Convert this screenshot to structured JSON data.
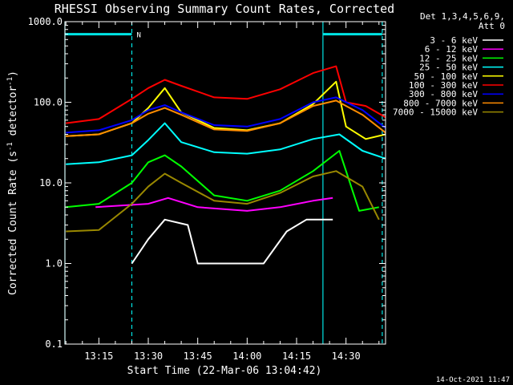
{
  "chart_data": {
    "type": "line",
    "title": "RHESSI Observing Summary Count Rates, Corrected",
    "xlabel": "Start Time (22-Mar-06 13:04:42)",
    "ylabel": "Corrected Count Rate (s⁻¹ detector⁻¹)",
    "ylabel_parts": [
      "Corrected Count Rate (s",
      "-1",
      " detector",
      "-1",
      ")"
    ],
    "y_scale": "log",
    "ylim": [
      0.1,
      1000
    ],
    "xlim": [
      "13:04:42",
      "14:42:00"
    ],
    "y_ticks": [
      "0.1",
      "1.0",
      "10.0",
      "100.0",
      "1000.0"
    ],
    "x_ticks": [
      "13:15",
      "13:30",
      "13:45",
      "14:00",
      "14:15",
      "14:30"
    ],
    "legend_header": [
      "Det 1,3,4,5,6,9,",
      "Att 0"
    ],
    "legend_position": "right",
    "footer": "14-Oct-2021 11:47",
    "night_marker": "N",
    "vertical_markers": [
      {
        "time": "13:04:42",
        "style": "solid",
        "color": "#00e5e5"
      },
      {
        "time": "13:25:00",
        "style": "dashed",
        "color": "#00e5e5"
      },
      {
        "time": "14:23:00",
        "style": "solid",
        "color": "#00e5e5"
      },
      {
        "time": "14:41:00",
        "style": "dashed",
        "color": "#00e5e5"
      }
    ],
    "night_bars": [
      {
        "start": "13:04:42",
        "end": "13:25:00",
        "value": 700
      },
      {
        "start": "14:23:00",
        "end": "14:41:00",
        "value": 700
      }
    ],
    "series": [
      {
        "name": "3 - 6 keV",
        "color": "#ffffff",
        "points": [
          [
            "13:25",
            1.0
          ],
          [
            "13:30",
            2.0
          ],
          [
            "13:35",
            3.5
          ],
          [
            "13:42",
            3.0
          ],
          [
            "13:45",
            1.0
          ],
          [
            "13:55",
            1.0
          ],
          [
            "14:05",
            1.0
          ],
          [
            "14:12",
            2.5
          ],
          [
            "14:18",
            3.5
          ],
          [
            "14:26",
            3.5
          ]
        ]
      },
      {
        "name": "6 - 12 keV",
        "color": "#ff00ff",
        "points": [
          [
            "13:14",
            5.0
          ],
          [
            "13:30",
            5.5
          ],
          [
            "13:36",
            6.5
          ],
          [
            "13:45",
            5.0
          ],
          [
            "14:00",
            4.5
          ],
          [
            "14:10",
            5.0
          ],
          [
            "14:20",
            6.0
          ],
          [
            "14:26",
            6.5
          ]
        ]
      },
      {
        "name": "12 - 25 keV",
        "color": "#00ff00",
        "points": [
          [
            "13:05",
            5.0
          ],
          [
            "13:15",
            5.5
          ],
          [
            "13:25",
            10
          ],
          [
            "13:30",
            18
          ],
          [
            "13:35",
            22
          ],
          [
            "13:40",
            16
          ],
          [
            "13:50",
            7
          ],
          [
            "14:00",
            6
          ],
          [
            "14:10",
            8
          ],
          [
            "14:20",
            14
          ],
          [
            "14:28",
            25
          ],
          [
            "14:34",
            4.5
          ],
          [
            "14:40",
            5
          ]
        ]
      },
      {
        "name": "25 - 50 keV",
        "color": "#00ffff",
        "points": [
          [
            "13:05",
            17
          ],
          [
            "13:15",
            18
          ],
          [
            "13:25",
            22
          ],
          [
            "13:30",
            34
          ],
          [
            "13:35",
            55
          ],
          [
            "13:40",
            32
          ],
          [
            "13:50",
            24
          ],
          [
            "14:00",
            23
          ],
          [
            "14:10",
            26
          ],
          [
            "14:20",
            35
          ],
          [
            "14:28",
            40
          ],
          [
            "14:35",
            25
          ],
          [
            "14:42",
            20
          ]
        ]
      },
      {
        "name": "50 - 100 keV",
        "color": "#ffff00",
        "points": [
          [
            "13:05",
            38
          ],
          [
            "13:15",
            40
          ],
          [
            "13:25",
            55
          ],
          [
            "13:30",
            85
          ],
          [
            "13:35",
            150
          ],
          [
            "13:40",
            75
          ],
          [
            "13:50",
            48
          ],
          [
            "14:00",
            45
          ],
          [
            "14:10",
            55
          ],
          [
            "14:20",
            95
          ],
          [
            "14:27",
            180
          ],
          [
            "14:30",
            50
          ],
          [
            "14:36",
            35
          ],
          [
            "14:42",
            40
          ]
        ]
      },
      {
        "name": "100 - 300 keV",
        "color": "#ff0000",
        "points": [
          [
            "13:05",
            55
          ],
          [
            "13:15",
            62
          ],
          [
            "13:25",
            110
          ],
          [
            "13:30",
            150
          ],
          [
            "13:35",
            190
          ],
          [
            "13:40",
            160
          ],
          [
            "13:50",
            115
          ],
          [
            "14:00",
            110
          ],
          [
            "14:10",
            145
          ],
          [
            "14:20",
            230
          ],
          [
            "14:27",
            280
          ],
          [
            "14:30",
            100
          ],
          [
            "14:36",
            90
          ],
          [
            "14:42",
            65
          ]
        ]
      },
      {
        "name": "300 - 800 keV",
        "color": "#0000ff",
        "points": [
          [
            "13:05",
            42
          ],
          [
            "13:15",
            45
          ],
          [
            "13:25",
            60
          ],
          [
            "13:30",
            80
          ],
          [
            "13:35",
            92
          ],
          [
            "13:40",
            75
          ],
          [
            "13:50",
            52
          ],
          [
            "14:00",
            50
          ],
          [
            "14:10",
            62
          ],
          [
            "14:20",
            100
          ],
          [
            "14:27",
            115
          ],
          [
            "14:35",
            80
          ],
          [
            "14:42",
            48
          ]
        ]
      },
      {
        "name": "800 - 7000 keV",
        "color": "#ff8c00",
        "points": [
          [
            "13:05",
            38
          ],
          [
            "13:15",
            40
          ],
          [
            "13:25",
            55
          ],
          [
            "13:30",
            72
          ],
          [
            "13:35",
            85
          ],
          [
            "13:40",
            70
          ],
          [
            "13:50",
            46
          ],
          [
            "14:00",
            44
          ],
          [
            "14:10",
            55
          ],
          [
            "14:20",
            90
          ],
          [
            "14:27",
            105
          ],
          [
            "14:35",
            70
          ],
          [
            "14:42",
            42
          ]
        ]
      },
      {
        "name": "7000 - 15000 keV",
        "color": "#998800",
        "points": [
          [
            "13:05",
            2.5
          ],
          [
            "13:15",
            2.6
          ],
          [
            "13:25",
            5.5
          ],
          [
            "13:30",
            9
          ],
          [
            "13:35",
            13
          ],
          [
            "13:40",
            10
          ],
          [
            "13:50",
            6
          ],
          [
            "14:00",
            5.5
          ],
          [
            "14:10",
            7.5
          ],
          [
            "14:20",
            12
          ],
          [
            "14:27",
            14
          ],
          [
            "14:35",
            9
          ],
          [
            "14:40",
            3.5
          ]
        ]
      }
    ]
  }
}
